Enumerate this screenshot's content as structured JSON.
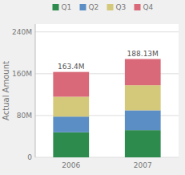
{
  "chart_data": {
    "type": "bar",
    "stacked": true,
    "categories": [
      "2006",
      "2007"
    ],
    "series": [
      {
        "name": "Q1",
        "color": "#2d8b4e",
        "values": [
          48,
          52
        ]
      },
      {
        "name": "Q2",
        "color": "#5b8ec4",
        "values": [
          30,
          38
        ]
      },
      {
        "name": "Q3",
        "color": "#d4c87a",
        "values": [
          38,
          48
        ]
      },
      {
        "name": "Q4",
        "color": "#d96878",
        "values": [
          47.4,
          50.13
        ]
      }
    ],
    "totals": [
      163.4,
      188.13
    ],
    "total_labels": [
      "163.4M",
      "188.13M"
    ],
    "ylabel": "Actual Amount",
    "ylim": [
      0,
      255
    ],
    "yticks": [
      0,
      {
        "value": 80,
        "label": "80M"
      },
      {
        "value": 160,
        "label": "160M"
      },
      {
        "value": 240,
        "label": "240M"
      }
    ],
    "grid": true,
    "legend": "top"
  }
}
